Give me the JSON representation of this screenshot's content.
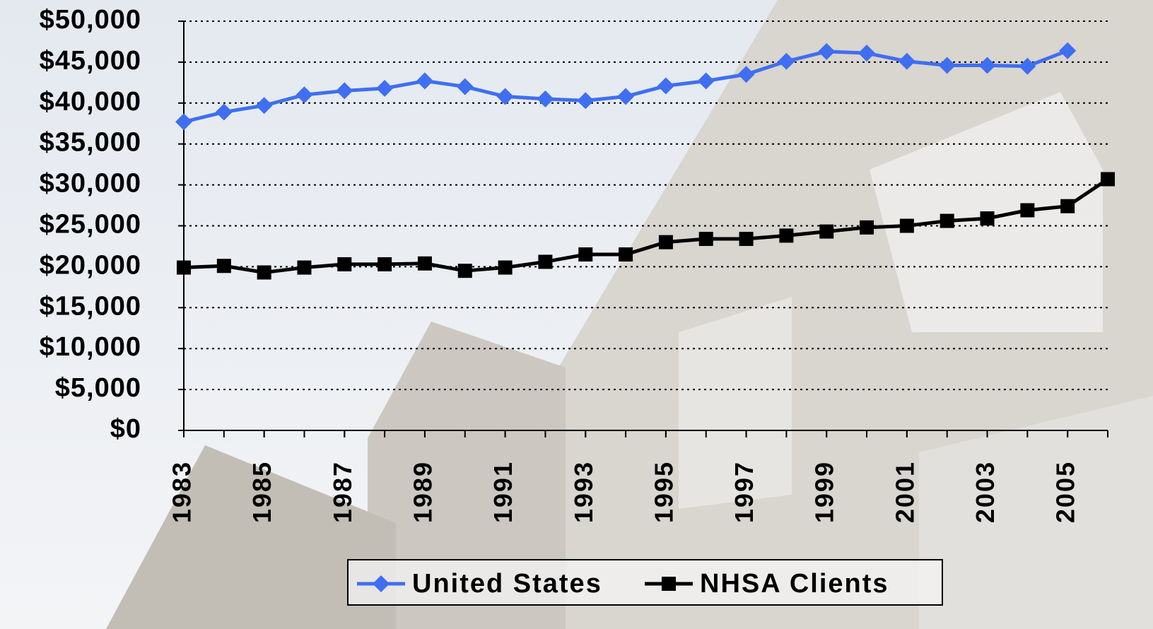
{
  "chart_data": {
    "type": "line",
    "x": [
      1983,
      1984,
      1985,
      1986,
      1987,
      1988,
      1989,
      1990,
      1991,
      1992,
      1993,
      1994,
      1995,
      1996,
      1997,
      1998,
      1999,
      2000,
      2001,
      2002,
      2003,
      2004,
      2005,
      2006
    ],
    "xlim": [
      1983,
      2006
    ],
    "xticks": [
      1983,
      1985,
      1987,
      1989,
      1991,
      1993,
      1995,
      1997,
      1999,
      2001,
      2003,
      2005
    ],
    "ylim": [
      0,
      50000
    ],
    "yticks": [
      {
        "value": 0,
        "label": "$0"
      },
      {
        "value": 5000,
        "label": "$5,000"
      },
      {
        "value": 10000,
        "label": "$10,000"
      },
      {
        "value": 15000,
        "label": "$15,000"
      },
      {
        "value": 20000,
        "label": "$20,000"
      },
      {
        "value": 25000,
        "label": "$25,000"
      },
      {
        "value": 30000,
        "label": "$30,000"
      },
      {
        "value": 35000,
        "label": "$35,000"
      },
      {
        "value": 40000,
        "label": "$40,000"
      },
      {
        "value": 45000,
        "label": "$45,000"
      },
      {
        "value": 50000,
        "label": "$50,000"
      }
    ],
    "grid": true,
    "series": [
      {
        "name": "United States",
        "color": "#3f6ff0",
        "marker": "diamond",
        "values": [
          37700,
          38900,
          39700,
          41000,
          41500,
          41800,
          42700,
          42000,
          40800,
          40500,
          40300,
          40800,
          42100,
          42700,
          43500,
          45100,
          46300,
          46100,
          45100,
          44600,
          44600,
          44500,
          46400,
          null
        ]
      },
      {
        "name": "NHSA Clients",
        "color": "#000000",
        "marker": "square",
        "values": [
          19900,
          20100,
          19300,
          19900,
          20300,
          20300,
          20400,
          19500,
          19900,
          20600,
          21500,
          21500,
          23000,
          23400,
          23400,
          23800,
          24300,
          24800,
          25000,
          25600,
          25900,
          26900,
          27400,
          30700
        ]
      }
    ]
  }
}
